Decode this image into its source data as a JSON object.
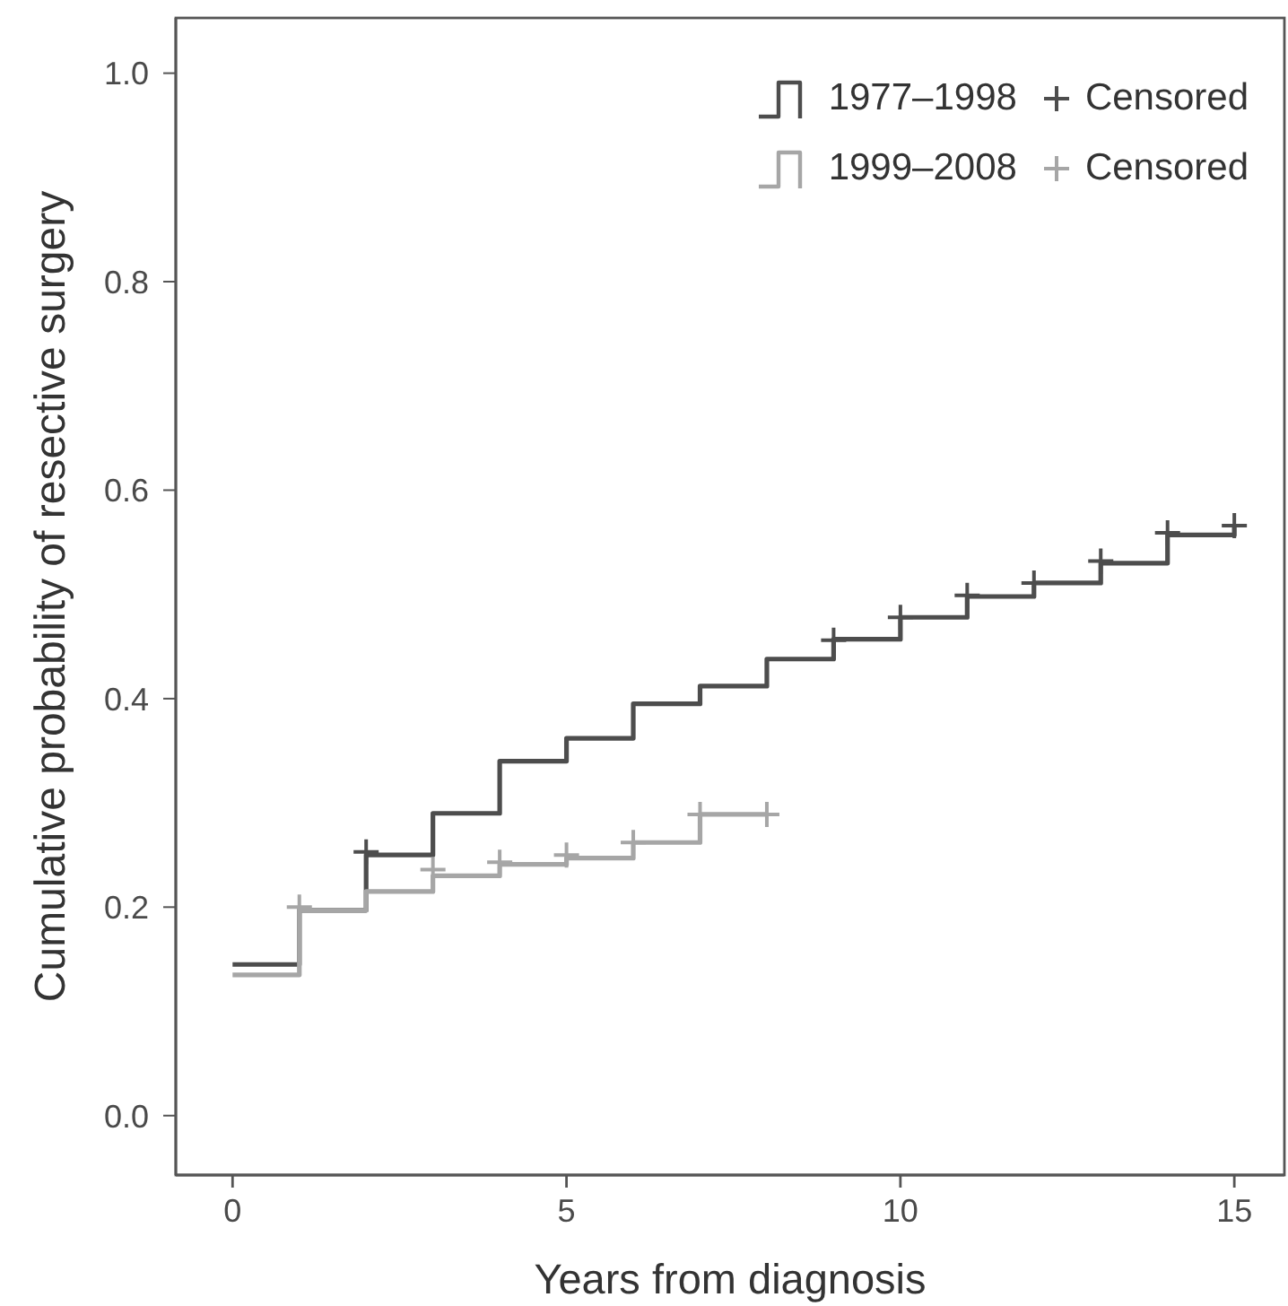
{
  "chart_data": {
    "type": "step",
    "xlabel": "Years from diagnosis",
    "ylabel": "Cumulative probability of resective surgery",
    "xlim": [
      -0.85,
      15.75
    ],
    "xticks": [
      0,
      5,
      10,
      15
    ],
    "ylim": [
      -0.057,
      1.053
    ],
    "yticks": [
      {
        "value": 0,
        "label": "0.0"
      },
      0.2,
      0.4,
      0.6,
      0.8,
      {
        "value": 1,
        "label": "1.0"
      }
    ],
    "legend": "top right",
    "series": [
      {
        "name": "1977–1998",
        "color": "#4d4d4d",
        "x": [
          0,
          1,
          2,
          3,
          4,
          5,
          6,
          7,
          8,
          9,
          10,
          11,
          12,
          13,
          14,
          15
        ],
        "values": [
          0.145,
          0.197,
          0.25,
          0.29,
          0.34,
          0.362,
          0.395,
          0.412,
          0.438,
          0.457,
          0.478,
          0.498,
          0.511,
          0.53,
          0.557,
          0.565
        ]
      },
      {
        "name": "Censored",
        "type": "scatter",
        "marker": "cross",
        "color": "#4d4d4d",
        "x": [
          2,
          9,
          10,
          11,
          12,
          13,
          14,
          15
        ],
        "values": [
          0.253,
          0.456,
          0.478,
          0.499,
          0.511,
          0.532,
          0.559,
          0.566
        ]
      },
      {
        "name": "1999–2008",
        "color": "#a6a6a6",
        "x": [
          0,
          1,
          2,
          3,
          4,
          5,
          6,
          7,
          8
        ],
        "values": [
          0.135,
          0.197,
          0.215,
          0.23,
          0.241,
          0.247,
          0.262,
          0.289,
          0.289
        ]
      },
      {
        "name": "Censored",
        "type": "scatter",
        "marker": "cross",
        "color": "#a6a6a6",
        "x": [
          1,
          3,
          4,
          5,
          6,
          7,
          8
        ],
        "values": [
          0.2,
          0.236,
          0.243,
          0.25,
          0.262,
          0.289,
          0.289
        ]
      }
    ]
  }
}
